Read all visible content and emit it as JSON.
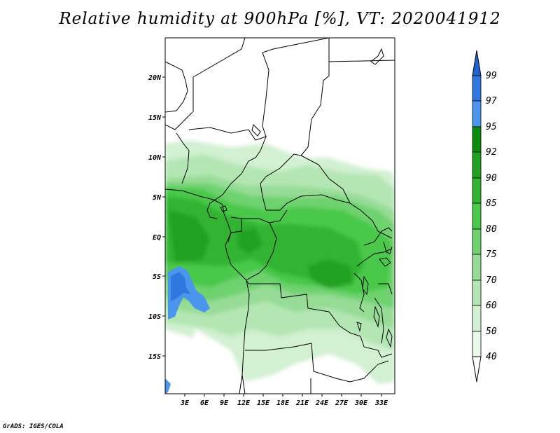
{
  "title": "Relative humidity at 900hPa [%], VT: 2020041912",
  "credit": "GrADS: IGES/COLA",
  "map": {
    "lat_labels": [
      "20N",
      "15N",
      "10N",
      "5N",
      "EQ",
      "5S",
      "10S",
      "15S"
    ],
    "lon_labels": [
      "3E",
      "6E",
      "9E",
      "12E",
      "15E",
      "18E",
      "21E",
      "24E",
      "27E",
      "30E",
      "33E"
    ]
  },
  "colorbar": {
    "levels": [
      "99",
      "97",
      "95",
      "92",
      "90",
      "85",
      "80",
      "75",
      "70",
      "60",
      "50",
      "40"
    ],
    "colors": {
      "above_99": "#1e64d2",
      "97_99": "#2f78e0",
      "95_97": "#4b96ec",
      "92_95": "#0c8c0c",
      "90_92": "#22a022",
      "85_90": "#33b433",
      "80_85": "#4ac84a",
      "75_80": "#6ed26e",
      "70_75": "#96dc96",
      "60_70": "#b4e6b4",
      "50_60": "#d2f0d2",
      "40_50": "#ebf9eb",
      "below_40": "#ffffff"
    }
  }
}
